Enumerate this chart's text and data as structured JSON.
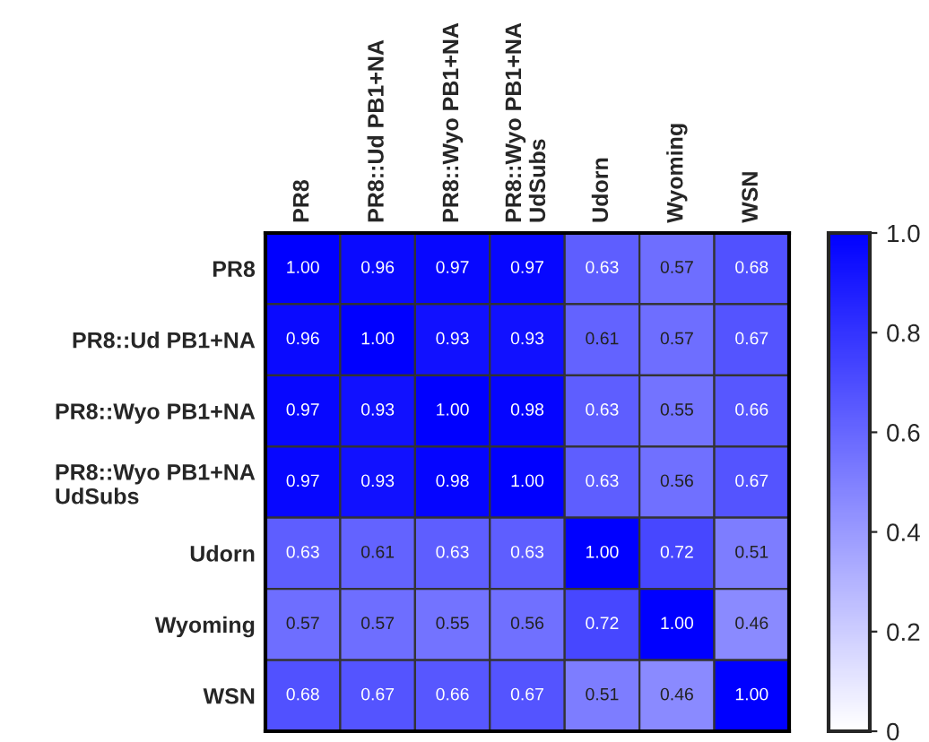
{
  "chart_data": {
    "type": "heatmap",
    "categories": [
      "PR8",
      "PR8::Ud PB1+NA",
      "PR8::Wyo PB1+NA",
      "PR8::Wyo PB1+NA\nUdSubs",
      "Udorn",
      "Wyoming",
      "WSN"
    ],
    "y_categories": [
      "PR8",
      "PR8::Ud PB1+NA",
      "PR8::Wyo PB1+NA",
      "PR8::Wyo PB1+NA\nUdSubs",
      "Udorn",
      "Wyoming",
      "WSN"
    ],
    "cells": [
      [
        1.0,
        0.96,
        0.97,
        0.97,
        0.63,
        0.57,
        0.68
      ],
      [
        0.96,
        1.0,
        0.93,
        0.93,
        0.61,
        0.57,
        0.67
      ],
      [
        0.97,
        0.93,
        1.0,
        0.98,
        0.63,
        0.55,
        0.66
      ],
      [
        0.97,
        0.93,
        0.98,
        1.0,
        0.63,
        0.56,
        0.67
      ],
      [
        0.63,
        0.61,
        0.63,
        0.63,
        1.0,
        0.72,
        0.51
      ],
      [
        0.57,
        0.57,
        0.55,
        0.56,
        0.72,
        1.0,
        0.46
      ],
      [
        0.68,
        0.67,
        0.66,
        0.67,
        0.51,
        0.46,
        1.0
      ]
    ],
    "cell_labels": [
      [
        "1.00",
        "0.96",
        "0.97",
        "0.97",
        "0.63",
        "0.57",
        "0.68"
      ],
      [
        "0.96",
        "1.00",
        "0.93",
        "0.93",
        "0.61",
        "0.57",
        "0.67"
      ],
      [
        "0.97",
        "0.93",
        "1.00",
        "0.98",
        "0.63",
        "0.55",
        "0.66"
      ],
      [
        "0.97",
        "0.93",
        "0.98",
        "1.00",
        "0.63",
        "0.56",
        "0.67"
      ],
      [
        "0.63",
        "0.61",
        "0.63",
        "0.63",
        "1.00",
        "0.72",
        "0.51"
      ],
      [
        "0.57",
        "0.57",
        "0.55",
        "0.56",
        "0.72",
        "1.00",
        "0.46"
      ],
      [
        "0.68",
        "0.67",
        "0.66",
        "0.67",
        "0.51",
        "0.46",
        "1.00"
      ]
    ],
    "clim": [
      0,
      1.0
    ],
    "cticks": [
      0,
      {
        "value": 0.2,
        "label": "0.2"
      },
      {
        "value": 0.4,
        "label": "0.4"
      },
      {
        "value": 0.6,
        "label": "0.6"
      },
      {
        "value": 0.8,
        "label": "0.8"
      },
      {
        "value": 1.0,
        "label": "1.0"
      }
    ],
    "color": "#0000ff"
  }
}
